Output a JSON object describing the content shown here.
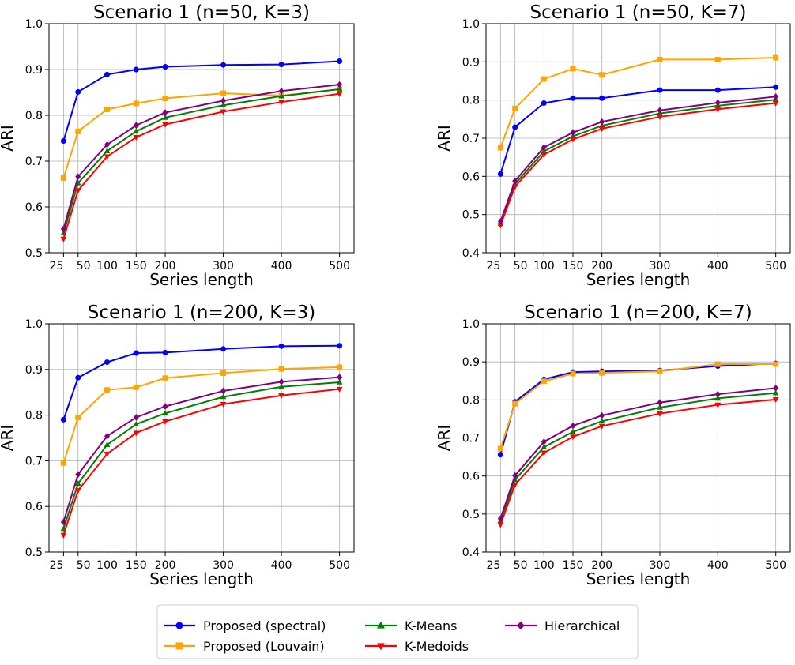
{
  "legend": {
    "placement": "bottom-center",
    "entries": [
      {
        "name": "Proposed (spectral)",
        "color": "#0000ff",
        "marker": "circle"
      },
      {
        "name": "Proposed (Louvain)",
        "color": "#ffa500",
        "marker": "square"
      },
      {
        "name": "K-Means",
        "color": "#008000",
        "marker": "triangle-up"
      },
      {
        "name": "K-Medoids",
        "color": "#ff0000",
        "marker": "triangle-down"
      },
      {
        "name": "Hierarchical",
        "color": "#800080",
        "marker": "diamond"
      }
    ]
  },
  "chart_data": [
    {
      "type": "line",
      "title": "Scenario 1 (n=50, K=3)",
      "xlabel": "Series length",
      "ylabel": "ARI",
      "x": [
        25,
        50,
        100,
        150,
        200,
        300,
        400,
        500
      ],
      "x_tick_labels": [
        "25",
        "50",
        "100",
        "150",
        "200",
        "300",
        "400",
        "500"
      ],
      "xlim": [
        0,
        525
      ],
      "ylim": [
        0.5,
        1.0
      ],
      "y_ticks": [
        "0.5",
        "0.6",
        "0.7",
        "0.8",
        "0.9",
        "1.0"
      ],
      "grid": true,
      "series": [
        {
          "name": "Proposed (spectral)",
          "values": [
            0.744,
            0.851,
            0.889,
            0.9,
            0.906,
            0.91,
            0.911,
            0.918
          ]
        },
        {
          "name": "Proposed (Louvain)",
          "values": [
            0.663,
            0.765,
            0.813,
            0.826,
            0.837,
            0.848,
            0.843,
            0.857
          ]
        },
        {
          "name": "K-Means",
          "values": [
            0.543,
            0.652,
            0.722,
            0.765,
            0.795,
            0.822,
            0.842,
            0.857
          ]
        },
        {
          "name": "K-Medoids",
          "values": [
            0.53,
            0.636,
            0.71,
            0.752,
            0.78,
            0.808,
            0.829,
            0.847
          ]
        },
        {
          "name": "Hierarchical",
          "values": [
            0.552,
            0.666,
            0.736,
            0.778,
            0.806,
            0.832,
            0.853,
            0.867
          ]
        }
      ]
    },
    {
      "type": "line",
      "title": "Scenario 1 (n=50, K=7)",
      "xlabel": "Series length",
      "ylabel": "ARI",
      "x": [
        25,
        50,
        100,
        150,
        200,
        300,
        400,
        500
      ],
      "x_tick_labels": [
        "25",
        "50",
        "100",
        "150",
        "200",
        "300",
        "400",
        "500"
      ],
      "xlim": [
        0,
        525
      ],
      "ylim": [
        0.4,
        1.0
      ],
      "y_ticks": [
        "0.4",
        "0.5",
        "0.6",
        "0.7",
        "0.8",
        "0.9",
        "1.0"
      ],
      "grid": true,
      "series": [
        {
          "name": "Proposed (spectral)",
          "values": [
            0.606,
            0.729,
            0.792,
            0.805,
            0.805,
            0.826,
            0.826,
            0.834
          ]
        },
        {
          "name": "Proposed (Louvain)",
          "values": [
            0.675,
            0.778,
            0.855,
            0.882,
            0.866,
            0.906,
            0.906,
            0.911
          ]
        },
        {
          "name": "K-Means",
          "values": [
            0.476,
            0.58,
            0.666,
            0.705,
            0.733,
            0.765,
            0.785,
            0.801
          ]
        },
        {
          "name": "K-Medoids",
          "values": [
            0.472,
            0.573,
            0.657,
            0.697,
            0.725,
            0.756,
            0.776,
            0.792
          ]
        },
        {
          "name": "Hierarchical",
          "values": [
            0.482,
            0.588,
            0.676,
            0.715,
            0.743,
            0.773,
            0.793,
            0.809
          ]
        }
      ]
    },
    {
      "type": "line",
      "title": "Scenario 1 (n=200, K=3)",
      "xlabel": "Series length",
      "ylabel": "ARI",
      "x": [
        25,
        50,
        100,
        150,
        200,
        300,
        400,
        500
      ],
      "x_tick_labels": [
        "25",
        "50",
        "100",
        "150",
        "200",
        "300",
        "400",
        "500"
      ],
      "xlim": [
        0,
        525
      ],
      "ylim": [
        0.5,
        1.0
      ],
      "y_ticks": [
        "0.5",
        "0.6",
        "0.7",
        "0.8",
        "0.9",
        "1.0"
      ],
      "grid": true,
      "series": [
        {
          "name": "Proposed (spectral)",
          "values": [
            0.79,
            0.882,
            0.916,
            0.936,
            0.937,
            0.945,
            0.951,
            0.952
          ]
        },
        {
          "name": "Proposed (Louvain)",
          "values": [
            0.695,
            0.795,
            0.855,
            0.861,
            0.881,
            0.892,
            0.901,
            0.905
          ]
        },
        {
          "name": "K-Means",
          "values": [
            0.551,
            0.65,
            0.735,
            0.78,
            0.804,
            0.84,
            0.862,
            0.872
          ]
        },
        {
          "name": "K-Medoids",
          "values": [
            0.537,
            0.635,
            0.715,
            0.761,
            0.786,
            0.824,
            0.843,
            0.857
          ]
        },
        {
          "name": "Hierarchical",
          "values": [
            0.566,
            0.67,
            0.754,
            0.795,
            0.819,
            0.853,
            0.873,
            0.883
          ]
        }
      ]
    },
    {
      "type": "line",
      "title": "Scenario 1 (n=200, K=7)",
      "xlabel": "Series length",
      "ylabel": "ARI",
      "x": [
        25,
        50,
        100,
        150,
        200,
        300,
        400,
        500
      ],
      "x_tick_labels": [
        "25",
        "50",
        "100",
        "150",
        "200",
        "300",
        "400",
        "500"
      ],
      "xlim": [
        0,
        525
      ],
      "ylim": [
        0.4,
        1.0
      ],
      "y_ticks": [
        "0.4",
        "0.5",
        "0.6",
        "0.7",
        "0.8",
        "0.9",
        "1.0"
      ],
      "grid": true,
      "series": [
        {
          "name": "Proposed (spectral)",
          "values": [
            0.656,
            0.795,
            0.854,
            0.873,
            0.875,
            0.877,
            0.889,
            0.896
          ]
        },
        {
          "name": "Proposed (Louvain)",
          "values": [
            0.672,
            0.79,
            0.849,
            0.869,
            0.871,
            0.875,
            0.894,
            0.894
          ]
        },
        {
          "name": "K-Means",
          "values": [
            0.482,
            0.59,
            0.676,
            0.716,
            0.744,
            0.78,
            0.804,
            0.818
          ]
        },
        {
          "name": "K-Medoids",
          "values": [
            0.472,
            0.577,
            0.661,
            0.703,
            0.731,
            0.764,
            0.787,
            0.801
          ]
        },
        {
          "name": "Hierarchical",
          "values": [
            0.488,
            0.601,
            0.69,
            0.732,
            0.759,
            0.793,
            0.815,
            0.831
          ]
        }
      ]
    }
  ]
}
